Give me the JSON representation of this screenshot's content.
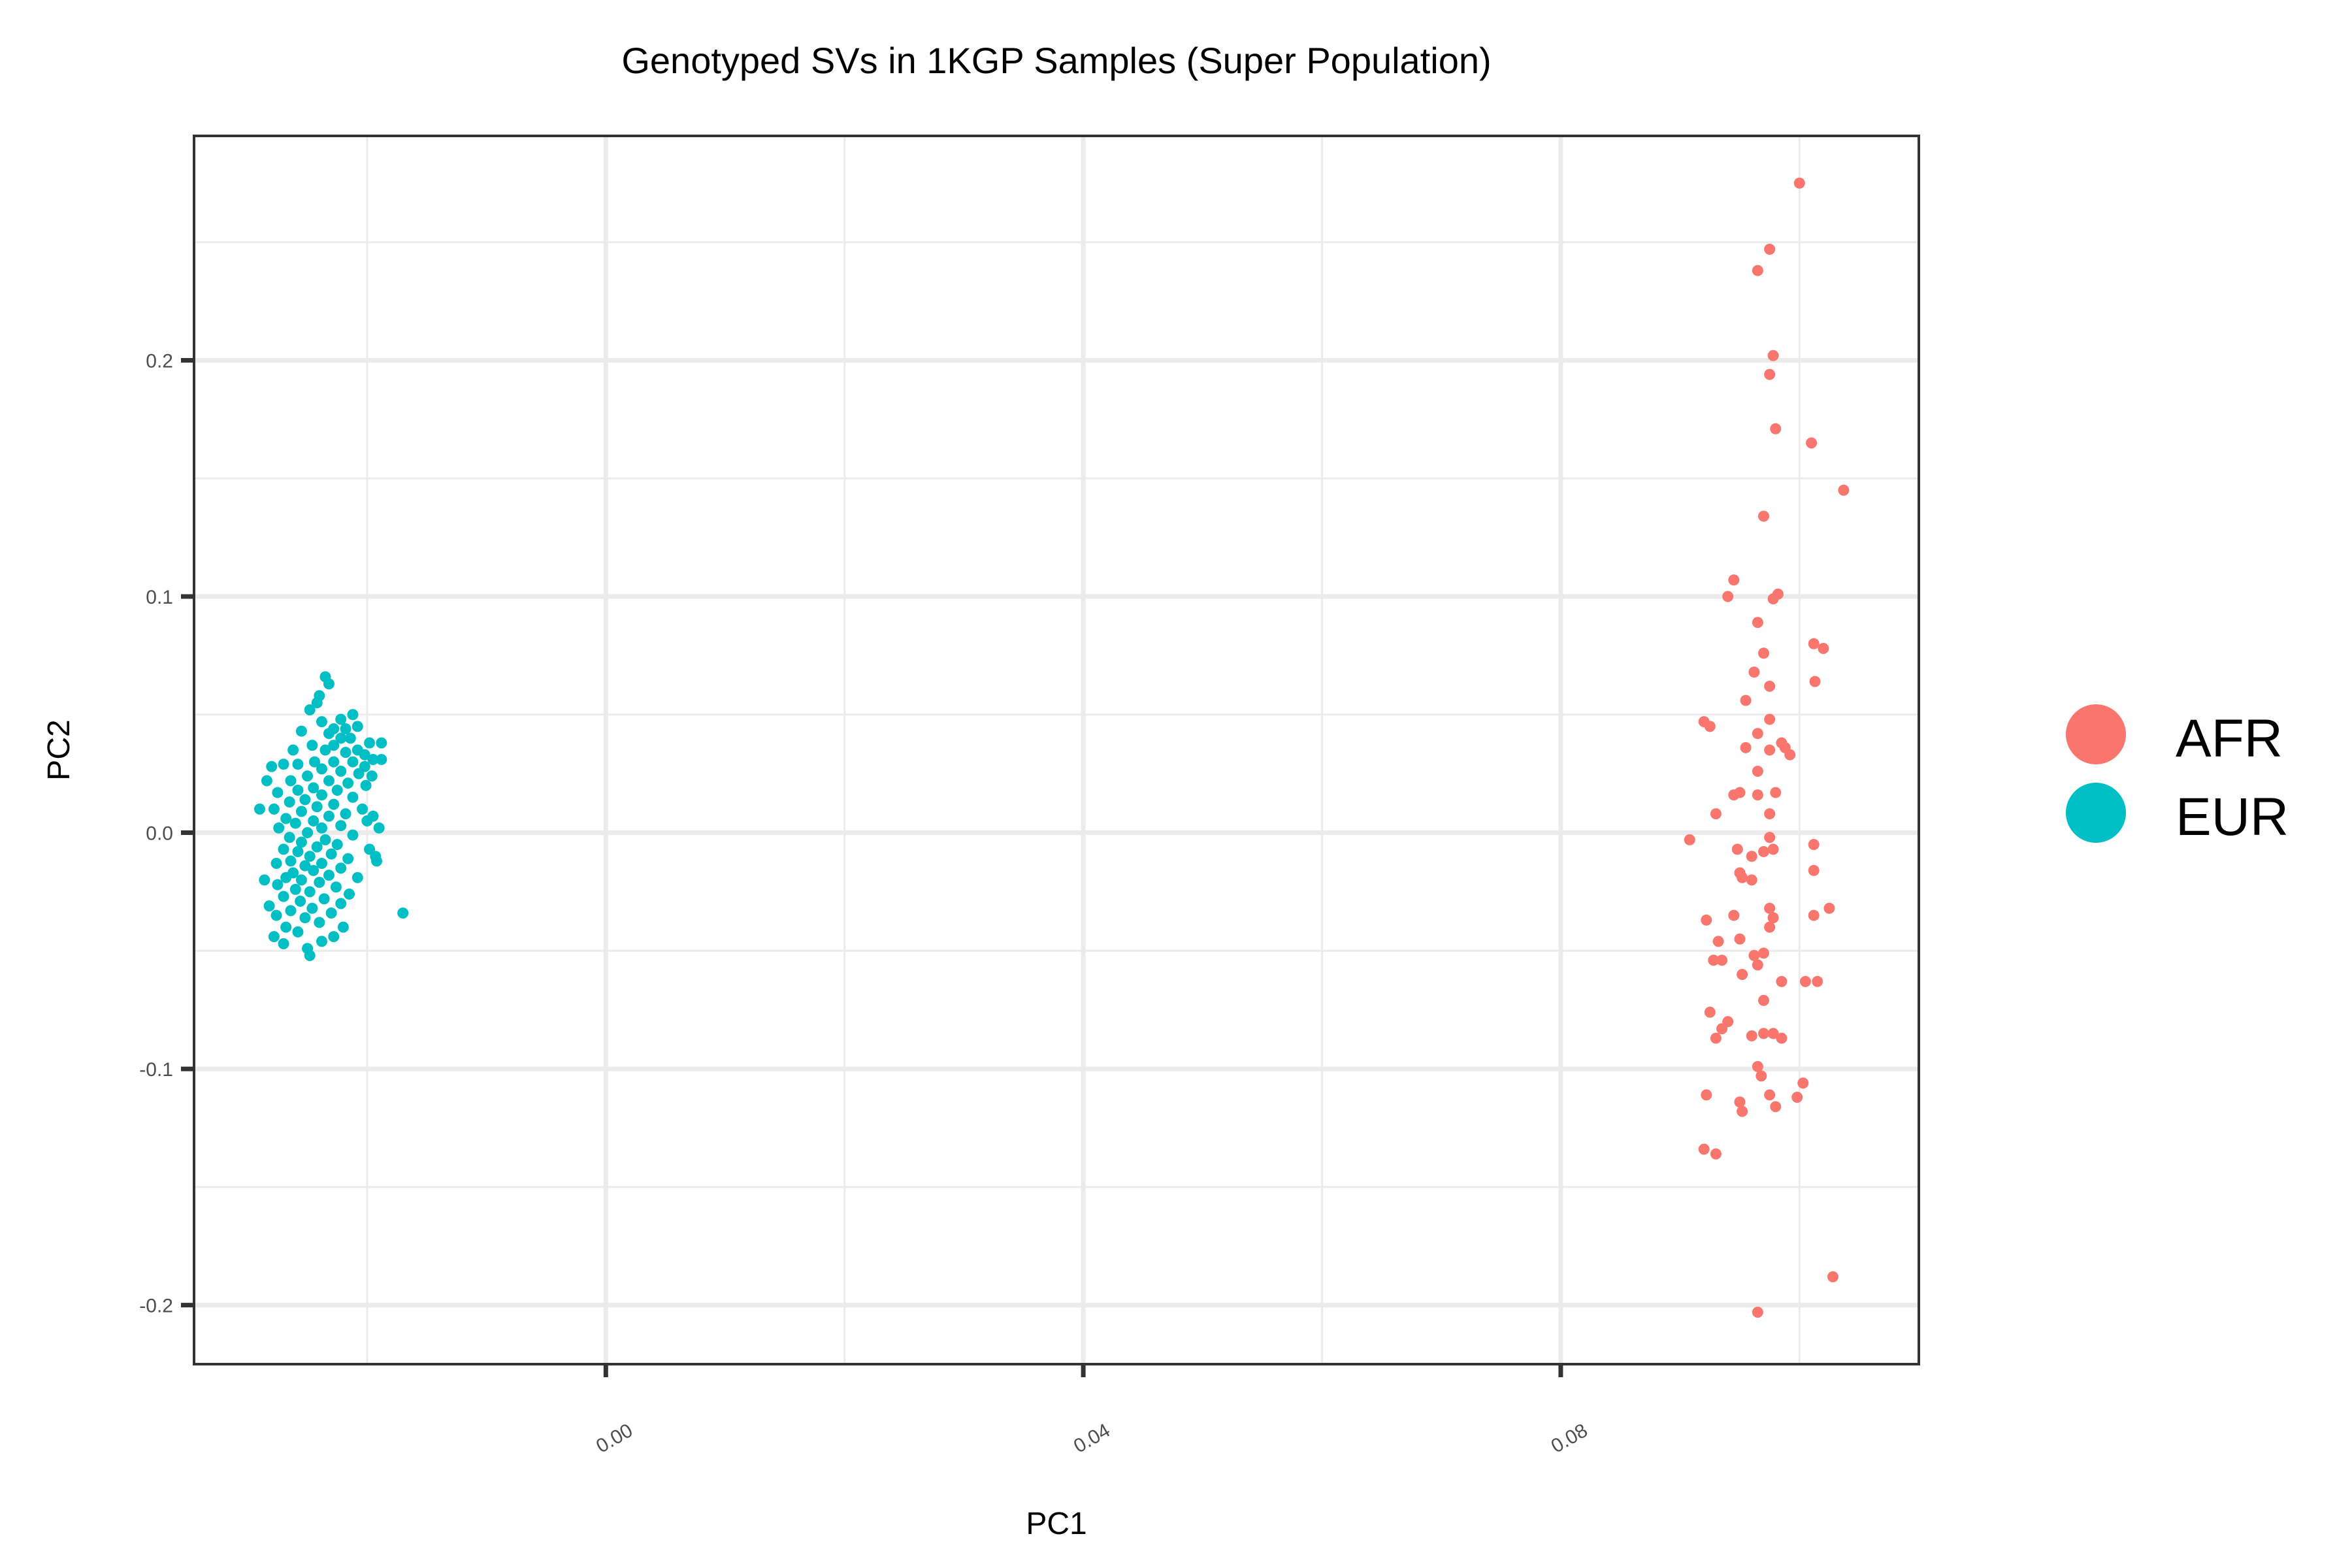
{
  "chart_data": {
    "type": "scatter",
    "title": "Genotyped SVs in 1KGP Samples (Super Population)",
    "xlabel": "PC1",
    "ylabel": "PC2",
    "xlim": [
      -0.0345,
      0.11
    ],
    "ylim": [
      -0.225,
      0.295
    ],
    "x_ticks": [
      {
        "value": 0.0,
        "label": "0.00"
      },
      {
        "value": 0.04,
        "label": "0.04"
      },
      {
        "value": 0.08,
        "label": "0.08"
      }
    ],
    "y_ticks": [
      {
        "value": -0.2,
        "label": "-0.2"
      },
      {
        "value": -0.1,
        "label": "-0.1"
      },
      {
        "value": 0.0,
        "label": "0.0"
      },
      {
        "value": 0.1,
        "label": "0.1"
      },
      {
        "value": 0.2,
        "label": "0.2"
      }
    ],
    "x_minor_ticks": [
      -0.02,
      0.02,
      0.06,
      0.1
    ],
    "y_minor_ticks": [
      -0.15,
      -0.05,
      0.05,
      0.15,
      0.25
    ],
    "grid": true,
    "legend_position": "right",
    "series": [
      {
        "name": "AFR",
        "color": "#F8766D",
        "points": [
          [
            0.1,
            0.275
          ],
          [
            0.0975,
            0.247
          ],
          [
            0.0965,
            0.238
          ],
          [
            0.0978,
            0.202
          ],
          [
            0.0975,
            0.194
          ],
          [
            0.098,
            0.171
          ],
          [
            0.101,
            0.165
          ],
          [
            0.1037,
            0.145
          ],
          [
            0.097,
            0.134
          ],
          [
            0.0945,
            0.107
          ],
          [
            0.0982,
            0.101
          ],
          [
            0.094,
            0.1
          ],
          [
            0.0978,
            0.099
          ],
          [
            0.0965,
            0.089
          ],
          [
            0.097,
            0.076
          ],
          [
            0.1012,
            0.08
          ],
          [
            0.102,
            0.078
          ],
          [
            0.0962,
            0.068
          ],
          [
            0.0975,
            0.062
          ],
          [
            0.1013,
            0.064
          ],
          [
            0.0955,
            0.056
          ],
          [
            0.0975,
            0.048
          ],
          [
            0.092,
            0.047
          ],
          [
            0.0925,
            0.045
          ],
          [
            0.0965,
            0.042
          ],
          [
            0.0985,
            0.038
          ],
          [
            0.0988,
            0.036
          ],
          [
            0.0992,
            0.033
          ],
          [
            0.0975,
            0.035
          ],
          [
            0.0955,
            0.036
          ],
          [
            0.0965,
            0.026
          ],
          [
            0.0965,
            0.016
          ],
          [
            0.0945,
            0.016
          ],
          [
            0.098,
            0.017
          ],
          [
            0.095,
            0.017
          ],
          [
            0.093,
            0.008
          ],
          [
            0.0975,
            0.008
          ],
          [
            0.0908,
            -0.003
          ],
          [
            0.0975,
            -0.002
          ],
          [
            0.0948,
            -0.007
          ],
          [
            0.1012,
            -0.005
          ],
          [
            0.096,
            -0.01
          ],
          [
            0.097,
            -0.008
          ],
          [
            0.0978,
            -0.007
          ],
          [
            0.095,
            -0.017
          ],
          [
            0.0952,
            -0.019
          ],
          [
            0.096,
            -0.02
          ],
          [
            0.1012,
            -0.016
          ],
          [
            0.0975,
            -0.032
          ],
          [
            0.0922,
            -0.037
          ],
          [
            0.0945,
            -0.035
          ],
          [
            0.0978,
            -0.036
          ],
          [
            0.1025,
            -0.032
          ],
          [
            0.0975,
            -0.04
          ],
          [
            0.1012,
            -0.035
          ],
          [
            0.0932,
            -0.046
          ],
          [
            0.095,
            -0.045
          ],
          [
            0.0928,
            -0.054
          ],
          [
            0.0935,
            -0.054
          ],
          [
            0.0962,
            -0.052
          ],
          [
            0.0965,
            -0.056
          ],
          [
            0.097,
            -0.051
          ],
          [
            0.0952,
            -0.06
          ],
          [
            0.0985,
            -0.063
          ],
          [
            0.1005,
            -0.063
          ],
          [
            0.1015,
            -0.063
          ],
          [
            0.097,
            -0.071
          ],
          [
            0.0925,
            -0.076
          ],
          [
            0.094,
            -0.08
          ],
          [
            0.0935,
            -0.083
          ],
          [
            0.093,
            -0.087
          ],
          [
            0.096,
            -0.086
          ],
          [
            0.097,
            -0.085
          ],
          [
            0.0978,
            -0.085
          ],
          [
            0.0985,
            -0.087
          ],
          [
            0.0965,
            -0.099
          ],
          [
            0.0968,
            -0.103
          ],
          [
            0.0922,
            -0.111
          ],
          [
            0.0975,
            -0.111
          ],
          [
            0.1003,
            -0.106
          ],
          [
            0.0998,
            -0.112
          ],
          [
            0.095,
            -0.114
          ],
          [
            0.0952,
            -0.118
          ],
          [
            0.098,
            -0.116
          ],
          [
            0.092,
            -0.134
          ],
          [
            0.093,
            -0.136
          ],
          [
            0.1028,
            -0.188
          ],
          [
            0.0965,
            -0.203
          ]
        ]
      },
      {
        "name": "EUR",
        "color": "#00BFC4",
        "points": [
          [
            -0.0235,
            0.066
          ],
          [
            -0.0232,
            0.063
          ],
          [
            -0.024,
            0.058
          ],
          [
            -0.0248,
            0.052
          ],
          [
            -0.0212,
            0.05
          ],
          [
            -0.0222,
            0.048
          ],
          [
            -0.0238,
            0.047
          ],
          [
            -0.0228,
            0.044
          ],
          [
            -0.0218,
            0.044
          ],
          [
            -0.0208,
            0.045
          ],
          [
            -0.0255,
            0.043
          ],
          [
            -0.0232,
            0.042
          ],
          [
            -0.0222,
            0.04
          ],
          [
            -0.0214,
            0.04
          ],
          [
            -0.0198,
            0.038
          ],
          [
            -0.0228,
            0.037
          ],
          [
            -0.0246,
            0.037
          ],
          [
            -0.0235,
            0.035
          ],
          [
            -0.0218,
            0.034
          ],
          [
            -0.0208,
            0.035
          ],
          [
            -0.0262,
            0.035
          ],
          [
            -0.0202,
            0.033
          ],
          [
            -0.0195,
            0.031
          ],
          [
            -0.0212,
            0.03
          ],
          [
            -0.0228,
            0.03
          ],
          [
            -0.0244,
            0.03
          ],
          [
            -0.0258,
            0.029
          ],
          [
            -0.027,
            0.029
          ],
          [
            -0.028,
            0.028
          ],
          [
            -0.0238,
            0.027
          ],
          [
            -0.0222,
            0.026
          ],
          [
            -0.0207,
            0.025
          ],
          [
            -0.025,
            0.024
          ],
          [
            -0.0264,
            0.022
          ],
          [
            -0.0232,
            0.022
          ],
          [
            -0.0216,
            0.021
          ],
          [
            -0.0201,
            0.02
          ],
          [
            -0.0245,
            0.019
          ],
          [
            -0.0258,
            0.018
          ],
          [
            -0.0225,
            0.018
          ],
          [
            -0.0275,
            0.017
          ],
          [
            -0.0238,
            0.016
          ],
          [
            -0.0212,
            0.015
          ],
          [
            -0.0252,
            0.014
          ],
          [
            -0.0265,
            0.013
          ],
          [
            -0.0228,
            0.012
          ],
          [
            -0.0242,
            0.011
          ],
          [
            -0.0204,
            0.01
          ],
          [
            -0.0278,
            0.01
          ],
          [
            -0.0255,
            0.009
          ],
          [
            -0.0218,
            0.008
          ],
          [
            -0.0232,
            0.007
          ],
          [
            -0.0268,
            0.006
          ],
          [
            -0.0245,
            0.005
          ],
          [
            -0.02,
            0.005
          ],
          [
            -0.026,
            0.004
          ],
          [
            -0.0222,
            0.003
          ],
          [
            -0.0238,
            0.002
          ],
          [
            -0.0274,
            0.002
          ],
          [
            -0.025,
            0.0
          ],
          [
            -0.0212,
            -0.001
          ],
          [
            -0.0265,
            -0.002
          ],
          [
            -0.0235,
            -0.003
          ],
          [
            -0.0255,
            -0.004
          ],
          [
            -0.0225,
            -0.005
          ],
          [
            -0.0242,
            -0.006
          ],
          [
            -0.027,
            -0.007
          ],
          [
            -0.0198,
            -0.007
          ],
          [
            -0.0258,
            -0.008
          ],
          [
            -0.023,
            -0.009
          ],
          [
            -0.0248,
            -0.01
          ],
          [
            -0.0216,
            -0.011
          ],
          [
            -0.0264,
            -0.012
          ],
          [
            -0.0238,
            -0.013
          ],
          [
            -0.0276,
            -0.013
          ],
          [
            -0.0252,
            -0.014
          ],
          [
            -0.0222,
            -0.015
          ],
          [
            -0.0245,
            -0.016
          ],
          [
            -0.0262,
            -0.017
          ],
          [
            -0.0232,
            -0.018
          ],
          [
            -0.0268,
            -0.019
          ],
          [
            -0.0208,
            -0.019
          ],
          [
            -0.0255,
            -0.02
          ],
          [
            -0.024,
            -0.021
          ],
          [
            -0.0275,
            -0.022
          ],
          [
            -0.0226,
            -0.023
          ],
          [
            -0.026,
            -0.024
          ],
          [
            -0.0248,
            -0.025
          ],
          [
            -0.0215,
            -0.026
          ],
          [
            -0.027,
            -0.027
          ],
          [
            -0.0236,
            -0.028
          ],
          [
            -0.0256,
            -0.029
          ],
          [
            -0.0222,
            -0.03
          ],
          [
            -0.0282,
            -0.031
          ],
          [
            -0.0246,
            -0.032
          ],
          [
            -0.0264,
            -0.033
          ],
          [
            -0.023,
            -0.034
          ],
          [
            -0.0276,
            -0.035
          ],
          [
            -0.0252,
            -0.036
          ],
          [
            -0.024,
            -0.038
          ],
          [
            -0.0268,
            -0.04
          ],
          [
            -0.0258,
            -0.042
          ],
          [
            -0.0278,
            -0.044
          ],
          [
            -0.0238,
            -0.046
          ],
          [
            -0.027,
            -0.047
          ],
          [
            -0.025,
            -0.049
          ],
          [
            -0.0248,
            -0.052
          ],
          [
            -0.029,
            0.01
          ],
          [
            -0.0195,
            0.007
          ],
          [
            -0.0193,
            -0.01
          ],
          [
            -0.0192,
            -0.012
          ],
          [
            -0.019,
            0.002
          ],
          [
            -0.0202,
            0.028
          ],
          [
            -0.0196,
            0.024
          ],
          [
            -0.022,
            -0.04
          ],
          [
            -0.0228,
            -0.044
          ],
          [
            -0.017,
            -0.034
          ],
          [
            -0.0242,
            0.055
          ],
          [
            -0.0188,
            0.038
          ],
          [
            -0.0188,
            0.031
          ],
          [
            -0.0284,
            0.022
          ],
          [
            -0.0286,
            -0.02
          ]
        ]
      }
    ]
  }
}
